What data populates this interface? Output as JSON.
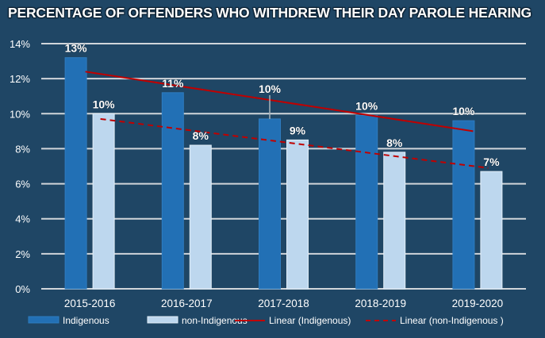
{
  "chart_data": {
    "type": "bar",
    "title": "PERCENTAGE OF OFFENDERS WHO WITHDREW THEIR DAY PAROLE HEARING",
    "xlabel": "",
    "ylabel": "",
    "ylim": [
      0,
      14
    ],
    "yticks": [
      0,
      2,
      4,
      6,
      8,
      10,
      12,
      14
    ],
    "ytick_labels": [
      "0%",
      "2%",
      "4%",
      "6%",
      "8%",
      "10%",
      "12%",
      "14%"
    ],
    "grid": true,
    "legend_position": "bottom",
    "categories": [
      "2015-2016",
      "2016-2017",
      "2017-2018",
      "2018-2019",
      "2019-2020"
    ],
    "series": [
      {
        "name": "Indigenous",
        "color": "#2270b5",
        "values": [
          13.2,
          11.2,
          9.7,
          9.9,
          9.6
        ],
        "labels": [
          "13%",
          "11%",
          "10%",
          "10%",
          "10%"
        ]
      },
      {
        "name": "non-Indigenous",
        "color": "#bdd7ee",
        "values": [
          10.0,
          8.2,
          8.5,
          7.8,
          6.7
        ],
        "labels": [
          "10%",
          "8%",
          "9%",
          "8%",
          "7%"
        ]
      }
    ],
    "trendlines": [
      {
        "name": "Linear (Indigenous)",
        "series": "Indigenous",
        "style": "solid",
        "color": "#c00000",
        "start": 12.4,
        "end": 9.0
      },
      {
        "name": "Linear (non-Indigenous )",
        "series": "non-Indigenous",
        "style": "dashed",
        "color": "#c00000",
        "start": 9.7,
        "end": 6.9
      }
    ]
  }
}
